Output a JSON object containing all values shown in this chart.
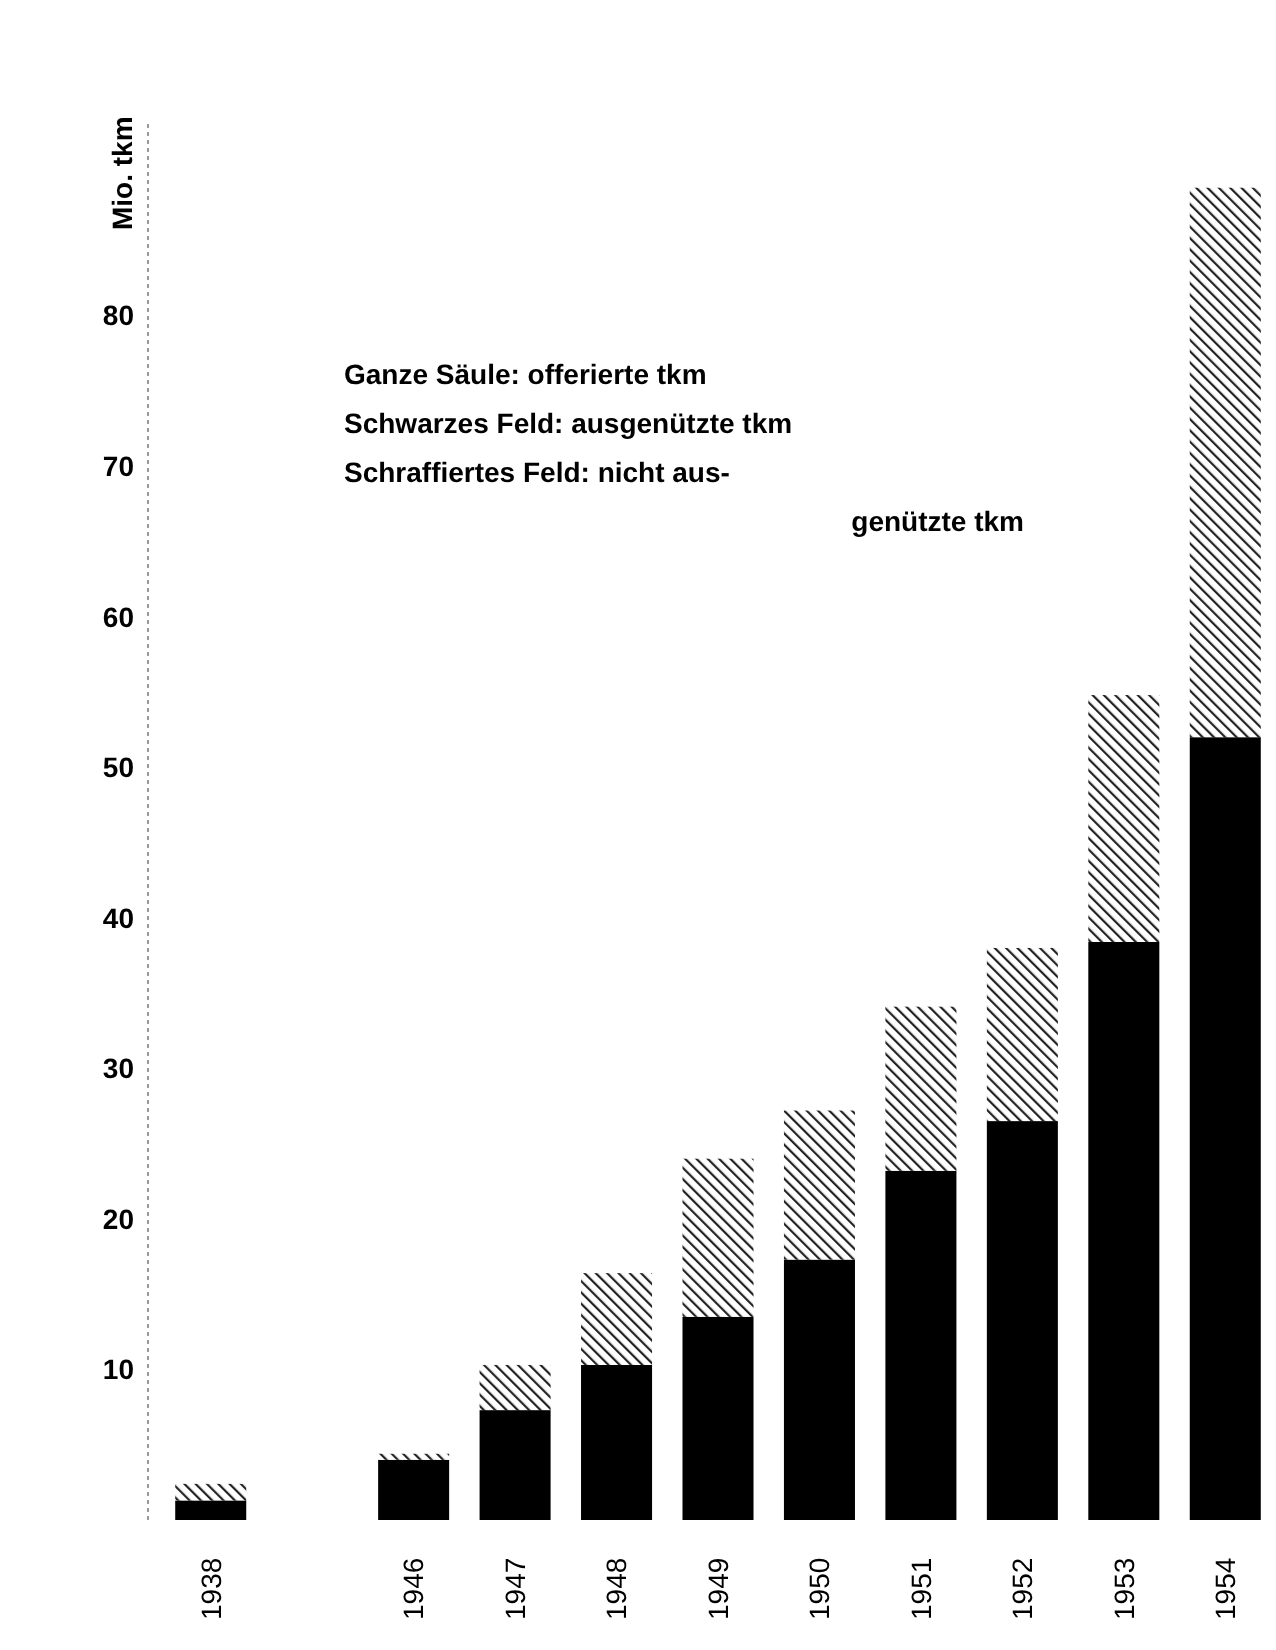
{
  "chart_data": {
    "type": "bar",
    "stacked": true,
    "ylabel": "Mio. tkm",
    "categories": [
      "1938",
      null,
      "1946",
      "1947",
      "1948",
      "1949",
      "1950",
      "1951",
      "1952",
      "1953",
      "1954"
    ],
    "series": [
      {
        "color": "#000000",
        "values": [
          1.3,
          null,
          4.0,
          7.3,
          10.3,
          13.5,
          17.3,
          23.2,
          26.5,
          38.4,
          52.0
        ]
      },
      {
        "color": "#222222",
        "values": [
          1.1,
          null,
          0.4,
          3.0,
          6.1,
          10.5,
          9.9,
          10.9,
          11.5,
          16.4,
          36.5
        ]
      }
    ],
    "ylim": [
      0,
      93
    ],
    "yticks": [
      10,
      20,
      30,
      40,
      50,
      60,
      70,
      80
    ],
    "annotations": [
      "Ganze Säule: offerierte tkm",
      "Schwarzes Feld: ausgenützte tkm",
      "Schraffiertes Feld: nicht aus-",
      "genützte tkm"
    ]
  }
}
